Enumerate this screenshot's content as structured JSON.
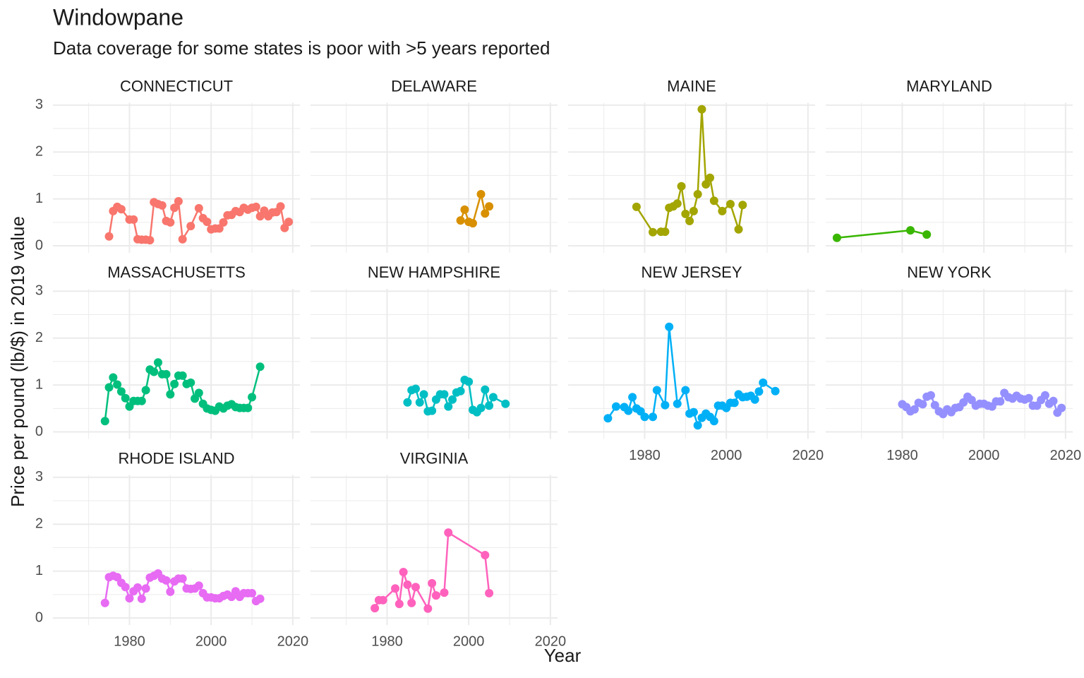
{
  "chart_data": {
    "type": "line",
    "title": "Windowpane",
    "subtitle": "Data coverage for some states is poor with >5 years reported",
    "x_label": "Year",
    "y_label": "Price per pound (lb/$) in 2019 value",
    "xlim": [
      1961.25,
      2021.75
    ],
    "xticks": [
      1980,
      2000,
      2020
    ],
    "minor_xticks": [
      1970,
      1990,
      2010
    ],
    "ylim": [
      -0.15,
      3.05
    ],
    "yticks": [
      0,
      1,
      2,
      3
    ],
    "minor_yticks": [
      0.5,
      1.5,
      2.5
    ],
    "grid": true,
    "facet_columns": 4,
    "series": [
      {
        "name": "CONNECTICUT",
        "color": "#F8766D",
        "x": [
          1975,
          1976,
          1977,
          1978,
          1980,
          1981,
          1982,
          1983,
          1984,
          1985,
          1986,
          1987,
          1988,
          1989,
          1990,
          1991,
          1992,
          1993,
          1995,
          1997,
          1998,
          1999,
          2000,
          2001,
          2002,
          2003,
          2004,
          2005,
          2006,
          2007,
          2008,
          2009,
          2010,
          2011,
          2012,
          2013,
          2014,
          2015,
          2016,
          2017,
          2018,
          2019
        ],
        "values": [
          0.2,
          0.74,
          0.83,
          0.78,
          0.56,
          0.56,
          0.14,
          0.13,
          0.13,
          0.12,
          0.93,
          0.89,
          0.86,
          0.53,
          0.5,
          0.81,
          0.95,
          0.14,
          0.42,
          0.8,
          0.59,
          0.51,
          0.35,
          0.37,
          0.37,
          0.5,
          0.65,
          0.66,
          0.74,
          0.72,
          0.81,
          0.77,
          0.81,
          0.83,
          0.63,
          0.75,
          0.63,
          0.71,
          0.72,
          0.84,
          0.38,
          0.51
        ]
      },
      {
        "name": "DELAWARE",
        "color": "#D89000",
        "x": [
          1998,
          1999,
          2000,
          2001,
          2003,
          2004,
          2005
        ],
        "values": [
          0.54,
          0.77,
          0.51,
          0.48,
          1.1,
          0.69,
          0.84
        ]
      },
      {
        "name": "MAINE",
        "color": "#A3A500",
        "x": [
          1978,
          1982,
          1984,
          1985,
          1986,
          1987,
          1988,
          1989,
          1990,
          1991,
          1992,
          1993,
          1994,
          1995,
          1996,
          1997,
          1999,
          2001,
          2003,
          2004
        ],
        "values": [
          0.83,
          0.29,
          0.3,
          0.3,
          0.81,
          0.84,
          0.9,
          1.27,
          0.68,
          0.53,
          0.74,
          1.1,
          2.91,
          1.31,
          1.45,
          0.96,
          0.74,
          0.89,
          0.35,
          0.87
        ]
      },
      {
        "name": "MARYLAND",
        "color": "#39B600",
        "x": [
          1964,
          1982,
          1986
        ],
        "values": [
          0.17,
          0.33,
          0.24
        ]
      },
      {
        "name": "MASSACHUSETTS",
        "color": "#00BF7D",
        "x": [
          1974,
          1975,
          1976,
          1977,
          1978,
          1979,
          1980,
          1981,
          1982,
          1983,
          1984,
          1985,
          1986,
          1987,
          1988,
          1989,
          1990,
          1991,
          1992,
          1993,
          1994,
          1995,
          1996,
          1997,
          1998,
          1999,
          2000,
          2001,
          2002,
          2003,
          2004,
          2005,
          2006,
          2007,
          2008,
          2009,
          2010,
          2012
        ],
        "values": [
          0.23,
          0.95,
          1.16,
          1.01,
          0.86,
          0.72,
          0.54,
          0.66,
          0.66,
          0.66,
          0.89,
          1.33,
          1.28,
          1.48,
          1.23,
          1.23,
          0.8,
          1.02,
          1.2,
          1.2,
          1.02,
          1.05,
          0.71,
          0.83,
          0.6,
          0.5,
          0.47,
          0.45,
          0.54,
          0.5,
          0.56,
          0.59,
          0.53,
          0.51,
          0.51,
          0.51,
          0.74,
          1.39
        ]
      },
      {
        "name": "NEW HAMPSHIRE",
        "color": "#00BFC4",
        "x": [
          1985,
          1986,
          1987,
          1988,
          1989,
          1990,
          1991,
          1992,
          1993,
          1994,
          1995,
          1996,
          1997,
          1998,
          1999,
          2000,
          2001,
          2002,
          2003,
          2004,
          2005,
          2006,
          2009
        ],
        "values": [
          0.63,
          0.89,
          0.92,
          0.63,
          0.8,
          0.44,
          0.45,
          0.69,
          0.8,
          0.8,
          0.54,
          0.69,
          0.84,
          0.87,
          1.11,
          1.07,
          0.47,
          0.42,
          0.51,
          0.9,
          0.56,
          0.74,
          0.6
        ]
      },
      {
        "name": "NEW JERSEY",
        "color": "#00B0F6",
        "x": [
          1971,
          1973,
          1975,
          1976,
          1977,
          1978,
          1979,
          1980,
          1982,
          1983,
          1985,
          1986,
          1988,
          1990,
          1991,
          1992,
          1993,
          1994,
          1995,
          1996,
          1997,
          1998,
          1999,
          2000,
          2001,
          2002,
          2003,
          2004,
          2005,
          2006,
          2007,
          2008,
          2009,
          2012
        ],
        "values": [
          0.29,
          0.54,
          0.53,
          0.45,
          0.74,
          0.5,
          0.44,
          0.32,
          0.32,
          0.89,
          0.57,
          2.24,
          0.6,
          0.89,
          0.39,
          0.42,
          0.14,
          0.3,
          0.39,
          0.32,
          0.23,
          0.56,
          0.56,
          0.51,
          0.62,
          0.62,
          0.8,
          0.74,
          0.75,
          0.77,
          0.69,
          0.86,
          1.05,
          0.87
        ]
      },
      {
        "name": "NEW YORK",
        "color": "#9590FF",
        "x": [
          1980,
          1981,
          1982,
          1983,
          1984,
          1985,
          1986,
          1987,
          1988,
          1989,
          1990,
          1991,
          1992,
          1993,
          1994,
          1995,
          1996,
          1997,
          1998,
          1999,
          2000,
          2001,
          2002,
          2003,
          2004,
          2005,
          2006,
          2007,
          2008,
          2009,
          2010,
          2011,
          2012,
          2013,
          2014,
          2015,
          2016,
          2017,
          2018,
          2019
        ],
        "values": [
          0.59,
          0.53,
          0.44,
          0.48,
          0.62,
          0.59,
          0.75,
          0.78,
          0.57,
          0.44,
          0.38,
          0.48,
          0.42,
          0.51,
          0.53,
          0.63,
          0.75,
          0.68,
          0.56,
          0.6,
          0.6,
          0.56,
          0.54,
          0.65,
          0.65,
          0.83,
          0.74,
          0.71,
          0.77,
          0.71,
          0.69,
          0.72,
          0.56,
          0.56,
          0.68,
          0.78,
          0.6,
          0.66,
          0.41,
          0.51
        ]
      },
      {
        "name": "RHODE ISLAND",
        "color": "#E76BF3",
        "x": [
          1974,
          1975,
          1976,
          1977,
          1978,
          1979,
          1980,
          1981,
          1982,
          1983,
          1984,
          1985,
          1986,
          1987,
          1988,
          1989,
          1990,
          1991,
          1992,
          1993,
          1994,
          1995,
          1996,
          1997,
          1998,
          1999,
          2000,
          2001,
          2002,
          2003,
          2004,
          2005,
          2006,
          2007,
          2008,
          2009,
          2010,
          2011,
          2012
        ],
        "values": [
          0.32,
          0.87,
          0.9,
          0.87,
          0.75,
          0.66,
          0.42,
          0.57,
          0.65,
          0.41,
          0.63,
          0.86,
          0.9,
          0.95,
          0.84,
          0.8,
          0.56,
          0.78,
          0.84,
          0.84,
          0.63,
          0.62,
          0.63,
          0.69,
          0.53,
          0.44,
          0.44,
          0.42,
          0.42,
          0.47,
          0.5,
          0.45,
          0.57,
          0.45,
          0.53,
          0.53,
          0.53,
          0.36,
          0.41
        ]
      },
      {
        "name": "VIRGINIA",
        "color": "#FF62BC",
        "x": [
          1977,
          1978,
          1979,
          1982,
          1983,
          1984,
          1985,
          1986,
          1987,
          1990,
          1991,
          1992,
          1994,
          1995,
          2004,
          2005
        ],
        "values": [
          0.21,
          0.38,
          0.38,
          0.63,
          0.3,
          0.98,
          0.71,
          0.32,
          0.66,
          0.2,
          0.74,
          0.48,
          0.54,
          1.82,
          1.34,
          0.53
        ]
      }
    ]
  }
}
